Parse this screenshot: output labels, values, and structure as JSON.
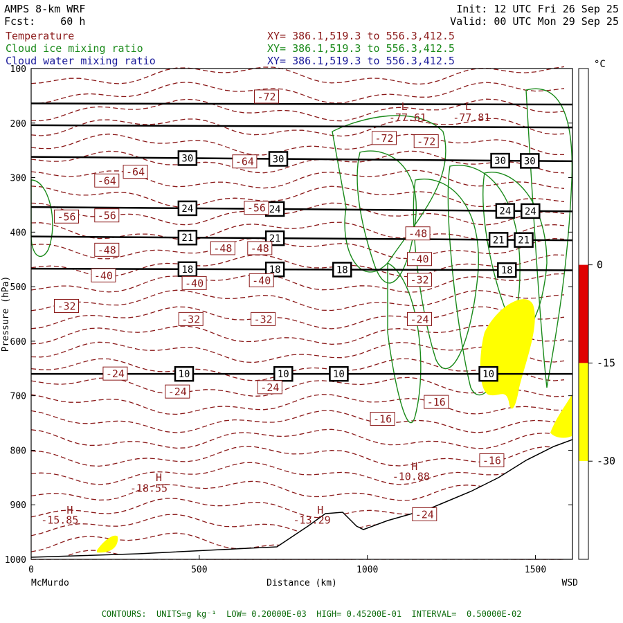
{
  "header": {
    "model": "AMPS 8-km WRF",
    "forecast": "Fcst:    60 h",
    "init": "Init: 12 UTC Fri 26 Sep 25",
    "valid": "Valid: 00 UTC Mon 29 Sep 25",
    "fields": [
      {
        "name": "Temperature",
        "color": "#8b1a1a",
        "xy": "XY= 386.1,519.3 to 556.3,412.5"
      },
      {
        "name": "Cloud ice mixing ratio",
        "color": "#1a8a1a",
        "xy": "XY= 386.1,519.3 to 556.3,412.5"
      },
      {
        "name": "Cloud water mixing ratio",
        "color": "#1a1a9a",
        "xy": "XY= 386.1,519.3 to 556.3,412.5"
      }
    ]
  },
  "footer": "CONTOURS:  UNITS=g kg⁻¹  LOW= 0.20000E-03  HIGH= 0.45200E-01  INTERVAL=  0.50000E-02",
  "colors": {
    "temperature": "#8b1a1a",
    "ice": "#1a8a1a",
    "water_fill": "#ffff00",
    "height": "#000000"
  },
  "chart_data": {
    "type": "cross-section",
    "x_axis": {
      "label": "Distance (km)",
      "range": [
        0,
        1610
      ],
      "ticks": [
        0,
        500,
        1000,
        1500
      ],
      "left_end": "McMurdo",
      "right_end": "WSD"
    },
    "y_axis": {
      "label": "Pressure (hPa)",
      "range": [
        100,
        1000
      ],
      "inverted": true,
      "ticks": [
        100,
        200,
        300,
        400,
        500,
        600,
        700,
        800,
        900,
        1000
      ]
    },
    "colorbar": {
      "unit": "°C",
      "segments": [
        {
          "from": 30,
          "to": 0,
          "color": "#ffffff"
        },
        {
          "from": 0,
          "to": -15,
          "color": "#e00000"
        },
        {
          "from": -15,
          "to": -30,
          "color": "#ffff00"
        },
        {
          "from": -30,
          "to": -45,
          "color": "#ffffff"
        }
      ],
      "labels": [
        "0",
        "-15",
        "-30"
      ]
    },
    "height_lines": [
      {
        "pressure_left": 164,
        "pressure_right": 166,
        "labels": []
      },
      {
        "pressure_left": 204,
        "pressure_right": 208,
        "labels": []
      },
      {
        "pressure_left": 262,
        "pressure_right": 270,
        "labels": [
          {
            "x": 465,
            "text": "30"
          },
          {
            "x": 735,
            "text": "30"
          },
          {
            "x": 1395,
            "text": "30"
          },
          {
            "x": 1483,
            "text": "30"
          }
        ]
      },
      {
        "pressure_left": 354,
        "pressure_right": 362,
        "labels": [
          {
            "x": 465,
            "text": "24"
          },
          {
            "x": 725,
            "text": "24"
          },
          {
            "x": 1410,
            "text": "24"
          },
          {
            "x": 1485,
            "text": "24"
          }
        ]
      },
      {
        "pressure_left": 408,
        "pressure_right": 415,
        "labels": [
          {
            "x": 465,
            "text": "21"
          },
          {
            "x": 725,
            "text": "21"
          },
          {
            "x": 1390,
            "text": "21"
          },
          {
            "x": 1465,
            "text": "21"
          }
        ]
      },
      {
        "pressure_left": 467,
        "pressure_right": 470,
        "labels": [
          {
            "x": 465,
            "text": "18"
          },
          {
            "x": 725,
            "text": "18"
          },
          {
            "x": 925,
            "text": "18"
          },
          {
            "x": 1415,
            "text": "18"
          }
        ]
      },
      {
        "pressure_left": 660,
        "pressure_right": 660,
        "labels": [
          {
            "x": 455,
            "text": "10"
          },
          {
            "x": 750,
            "text": "10"
          },
          {
            "x": 915,
            "text": "10"
          },
          {
            "x": 1360,
            "text": "10"
          }
        ]
      }
    ],
    "temperature_labels": [
      {
        "x": 700,
        "p": 152,
        "text": "-72"
      },
      {
        "x": 1110,
        "p": 170,
        "text": "L"
      },
      {
        "x": 1120,
        "p": 190,
        "text": "-77.61"
      },
      {
        "x": 1300,
        "p": 170,
        "text": "L"
      },
      {
        "x": 1310,
        "p": 190,
        "text": "-77.81"
      },
      {
        "x": 1050,
        "p": 228,
        "text": "-72"
      },
      {
        "x": 1175,
        "p": 234,
        "text": "-72"
      },
      {
        "x": 635,
        "p": 271,
        "text": "-64"
      },
      {
        "x": 310,
        "p": 290,
        "text": "-64"
      },
      {
        "x": 225,
        "p": 306,
        "text": "-64"
      },
      {
        "x": 105,
        "p": 372,
        "text": "-56"
      },
      {
        "x": 225,
        "p": 370,
        "text": "-56"
      },
      {
        "x": 670,
        "p": 356,
        "text": "-56"
      },
      {
        "x": 1150,
        "p": 403,
        "text": "-48"
      },
      {
        "x": 225,
        "p": 433,
        "text": "-48"
      },
      {
        "x": 570,
        "p": 430,
        "text": "-48"
      },
      {
        "x": 680,
        "p": 430,
        "text": "-48"
      },
      {
        "x": 1155,
        "p": 450,
        "text": "-40"
      },
      {
        "x": 215,
        "p": 480,
        "text": "-40"
      },
      {
        "x": 485,
        "p": 494,
        "text": "-40"
      },
      {
        "x": 685,
        "p": 489,
        "text": "-40"
      },
      {
        "x": 1155,
        "p": 488,
        "text": "-32"
      },
      {
        "x": 105,
        "p": 536,
        "text": "-32"
      },
      {
        "x": 475,
        "p": 560,
        "text": "-32"
      },
      {
        "x": 690,
        "p": 560,
        "text": "-32"
      },
      {
        "x": 1155,
        "p": 560,
        "text": "-24"
      },
      {
        "x": 250,
        "p": 660,
        "text": "-24"
      },
      {
        "x": 435,
        "p": 693,
        "text": "-24"
      },
      {
        "x": 710,
        "p": 685,
        "text": "-24"
      },
      {
        "x": 1205,
        "p": 712,
        "text": "-16"
      },
      {
        "x": 1045,
        "p": 743,
        "text": "-16"
      },
      {
        "x": 1370,
        "p": 819,
        "text": "-16"
      },
      {
        "x": 1170,
        "p": 918,
        "text": "-24"
      },
      {
        "x": 1140,
        "p": 830,
        "text": "H"
      },
      {
        "x": 1130,
        "p": 848,
        "text": "-10.88"
      },
      {
        "x": 380,
        "p": 850,
        "text": "H"
      },
      {
        "x": 350,
        "p": 870,
        "text": "-18.55"
      },
      {
        "x": 860,
        "p": 910,
        "text": "H"
      },
      {
        "x": 835,
        "p": 928,
        "text": "-13.29"
      },
      {
        "x": 115,
        "p": 910,
        "text": "H"
      },
      {
        "x": 85,
        "p": 928,
        "text": "-15.85"
      }
    ]
  }
}
